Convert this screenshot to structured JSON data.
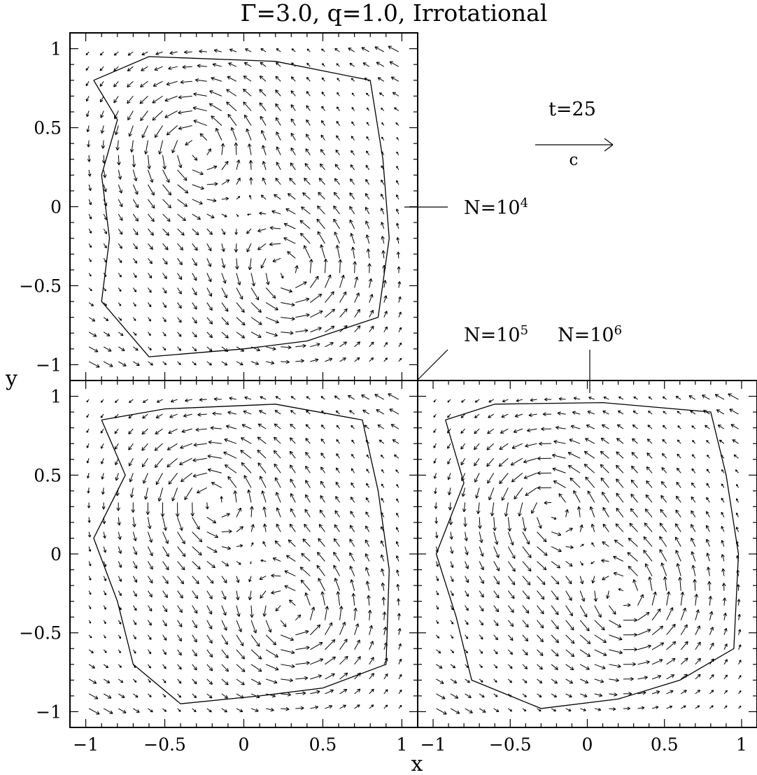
{
  "chart_data": {
    "type": "quiver",
    "title": "Γ=3.0,  q=1.0,  Irrotational",
    "xlabel": "x",
    "ylabel": "y",
    "xlim": [
      -1.1,
      1.1
    ],
    "ylim": [
      -1.1,
      1.1
    ],
    "xticks": [
      -1,
      -0.5,
      0,
      0.5,
      1
    ],
    "xtick_labels": [
      "−1",
      "−0.5",
      "0",
      "0.5",
      "1"
    ],
    "yticks": [
      -1,
      -0.5,
      0,
      0.5,
      1
    ],
    "ytick_labels": [
      "−1",
      "−0.5",
      "0",
      "0.5",
      "1"
    ],
    "time_label": "t=25",
    "velocity_scale_label": "c",
    "velocity_scale_value": 0.5,
    "grid": false,
    "panels": [
      {
        "name": "top-left",
        "label": "N=10⁴",
        "label_base": "N=10",
        "label_exp": "4",
        "vortices": [
          {
            "x": -0.3,
            "y": 0.38,
            "strength": 1.0
          },
          {
            "x": 0.28,
            "y": -0.42,
            "strength": 1.0
          }
        ],
        "contour": [
          [
            -0.95,
            0.8
          ],
          [
            -0.8,
            0.55
          ],
          [
            -0.9,
            0.2
          ],
          [
            -0.85,
            -0.2
          ],
          [
            -0.9,
            -0.6
          ],
          [
            -0.6,
            -0.95
          ],
          [
            0.0,
            -0.9
          ],
          [
            0.4,
            -0.85
          ],
          [
            0.85,
            -0.7
          ],
          [
            0.92,
            -0.2
          ],
          [
            0.88,
            0.3
          ],
          [
            0.8,
            0.8
          ],
          [
            0.2,
            0.92
          ],
          [
            -0.6,
            0.95
          ],
          [
            -0.95,
            0.8
          ]
        ]
      },
      {
        "name": "bottom-left",
        "label": "N=10⁵",
        "label_base": "N=10",
        "label_exp": "5",
        "vortices": [
          {
            "x": -0.2,
            "y": 0.35,
            "strength": 1.0
          },
          {
            "x": 0.3,
            "y": -0.4,
            "strength": 1.0
          }
        ],
        "contour": [
          [
            -0.9,
            0.85
          ],
          [
            -0.75,
            0.5
          ],
          [
            -0.95,
            0.1
          ],
          [
            -0.8,
            -0.3
          ],
          [
            -0.7,
            -0.7
          ],
          [
            -0.4,
            -0.95
          ],
          [
            0.1,
            -0.9
          ],
          [
            0.5,
            -0.85
          ],
          [
            0.9,
            -0.7
          ],
          [
            0.92,
            -0.1
          ],
          [
            0.85,
            0.4
          ],
          [
            0.75,
            0.85
          ],
          [
            0.2,
            0.95
          ],
          [
            -0.5,
            0.92
          ],
          [
            -0.9,
            0.85
          ]
        ]
      },
      {
        "name": "bottom-right",
        "label": "N=10⁶",
        "label_base": "N=10",
        "label_exp": "6",
        "vortices": [
          {
            "x": -0.25,
            "y": 0.3,
            "strength": 1.0
          },
          {
            "x": 0.25,
            "y": -0.3,
            "strength": 1.0
          }
        ],
        "contour": [
          [
            -0.92,
            0.85
          ],
          [
            -0.8,
            0.45
          ],
          [
            -0.98,
            0.0
          ],
          [
            -0.85,
            -0.4
          ],
          [
            -0.75,
            -0.8
          ],
          [
            -0.3,
            -0.98
          ],
          [
            0.2,
            -0.92
          ],
          [
            0.6,
            -0.8
          ],
          [
            0.95,
            -0.6
          ],
          [
            0.98,
            0.0
          ],
          [
            0.9,
            0.5
          ],
          [
            0.8,
            0.9
          ],
          [
            0.1,
            0.96
          ],
          [
            -0.6,
            0.95
          ],
          [
            -0.92,
            0.85
          ]
        ]
      }
    ]
  }
}
